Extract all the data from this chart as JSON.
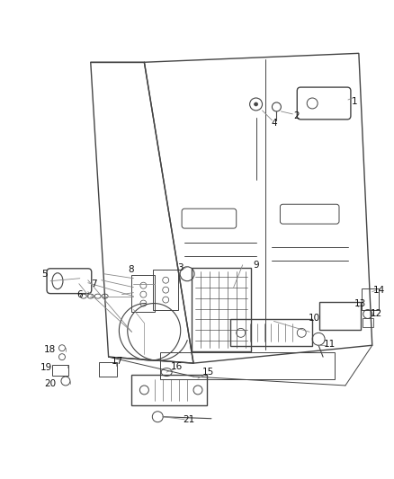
{
  "bg_color": "#ffffff",
  "line_color": "#444444",
  "label_color": "#111111",
  "figsize": [
    4.38,
    5.33
  ],
  "dpi": 100
}
